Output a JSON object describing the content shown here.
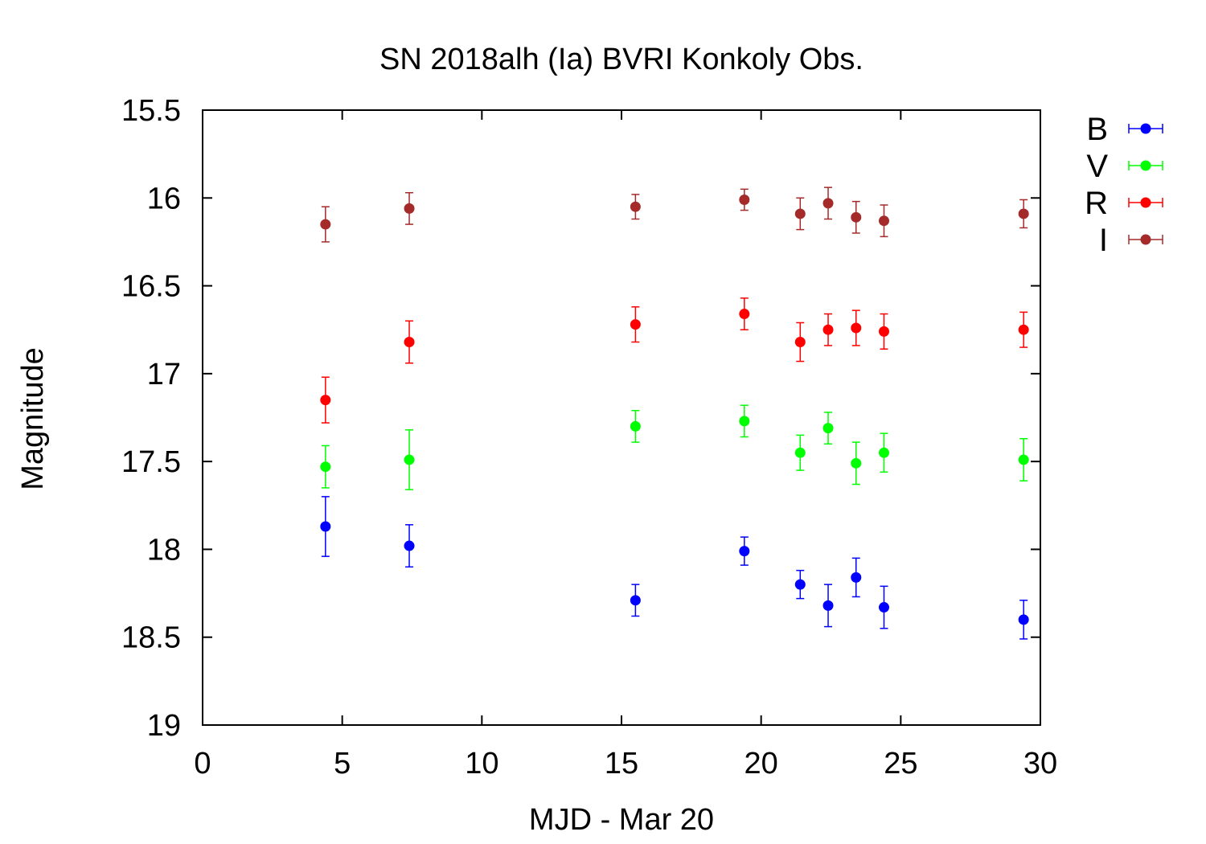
{
  "chart_data": {
    "type": "scatter",
    "title": "SN 2018alh (Ia) BVRI Konkoly Obs.",
    "xlabel": "MJD - Mar 20",
    "ylabel": "Magnitude",
    "xlim": [
      0,
      30
    ],
    "ylim": [
      15.5,
      19
    ],
    "y_inverted": true,
    "x_ticks": [
      "0",
      "5",
      "10",
      "15",
      "20",
      "25",
      "30"
    ],
    "y_ticks": [
      "15.5",
      "16",
      "16.5",
      "17",
      "17.5",
      "18",
      "18.5",
      "19"
    ],
    "grid": false,
    "legend_position": "top-right outside",
    "series": [
      {
        "name": "B",
        "color": "#0000ff",
        "points": [
          {
            "x": 4.4,
            "y": 17.87,
            "err": 0.17
          },
          {
            "x": 7.4,
            "y": 17.98,
            "err": 0.12
          },
          {
            "x": 15.5,
            "y": 18.29,
            "err": 0.09
          },
          {
            "x": 19.4,
            "y": 18.01,
            "err": 0.08
          },
          {
            "x": 21.4,
            "y": 18.2,
            "err": 0.08
          },
          {
            "x": 22.4,
            "y": 18.32,
            "err": 0.12
          },
          {
            "x": 23.4,
            "y": 18.16,
            "err": 0.11
          },
          {
            "x": 24.4,
            "y": 18.33,
            "err": 0.12
          },
          {
            "x": 29.4,
            "y": 18.4,
            "err": 0.11
          }
        ]
      },
      {
        "name": "V",
        "color": "#00ff00",
        "points": [
          {
            "x": 4.4,
            "y": 17.53,
            "err": 0.12
          },
          {
            "x": 7.4,
            "y": 17.49,
            "err": 0.17
          },
          {
            "x": 15.5,
            "y": 17.3,
            "err": 0.09
          },
          {
            "x": 19.4,
            "y": 17.27,
            "err": 0.09
          },
          {
            "x": 21.4,
            "y": 17.45,
            "err": 0.1
          },
          {
            "x": 22.4,
            "y": 17.31,
            "err": 0.09
          },
          {
            "x": 23.4,
            "y": 17.51,
            "err": 0.12
          },
          {
            "x": 24.4,
            "y": 17.45,
            "err": 0.11
          },
          {
            "x": 29.4,
            "y": 17.49,
            "err": 0.12
          }
        ]
      },
      {
        "name": "R",
        "color": "#ff0000",
        "points": [
          {
            "x": 4.4,
            "y": 17.15,
            "err": 0.13
          },
          {
            "x": 7.4,
            "y": 16.82,
            "err": 0.12
          },
          {
            "x": 15.5,
            "y": 16.72,
            "err": 0.1
          },
          {
            "x": 19.4,
            "y": 16.66,
            "err": 0.09
          },
          {
            "x": 21.4,
            "y": 16.82,
            "err": 0.11
          },
          {
            "x": 22.4,
            "y": 16.75,
            "err": 0.09
          },
          {
            "x": 23.4,
            "y": 16.74,
            "err": 0.1
          },
          {
            "x": 24.4,
            "y": 16.76,
            "err": 0.1
          },
          {
            "x": 29.4,
            "y": 16.75,
            "err": 0.1
          }
        ]
      },
      {
        "name": "I",
        "color": "#a52a2a",
        "points": [
          {
            "x": 4.4,
            "y": 16.15,
            "err": 0.1
          },
          {
            "x": 7.4,
            "y": 16.06,
            "err": 0.09
          },
          {
            "x": 15.5,
            "y": 16.05,
            "err": 0.07
          },
          {
            "x": 19.4,
            "y": 16.01,
            "err": 0.06
          },
          {
            "x": 21.4,
            "y": 16.09,
            "err": 0.09
          },
          {
            "x": 22.4,
            "y": 16.03,
            "err": 0.09
          },
          {
            "x": 23.4,
            "y": 16.11,
            "err": 0.09
          },
          {
            "x": 24.4,
            "y": 16.13,
            "err": 0.09
          },
          {
            "x": 29.4,
            "y": 16.09,
            "err": 0.08
          }
        ]
      }
    ]
  }
}
